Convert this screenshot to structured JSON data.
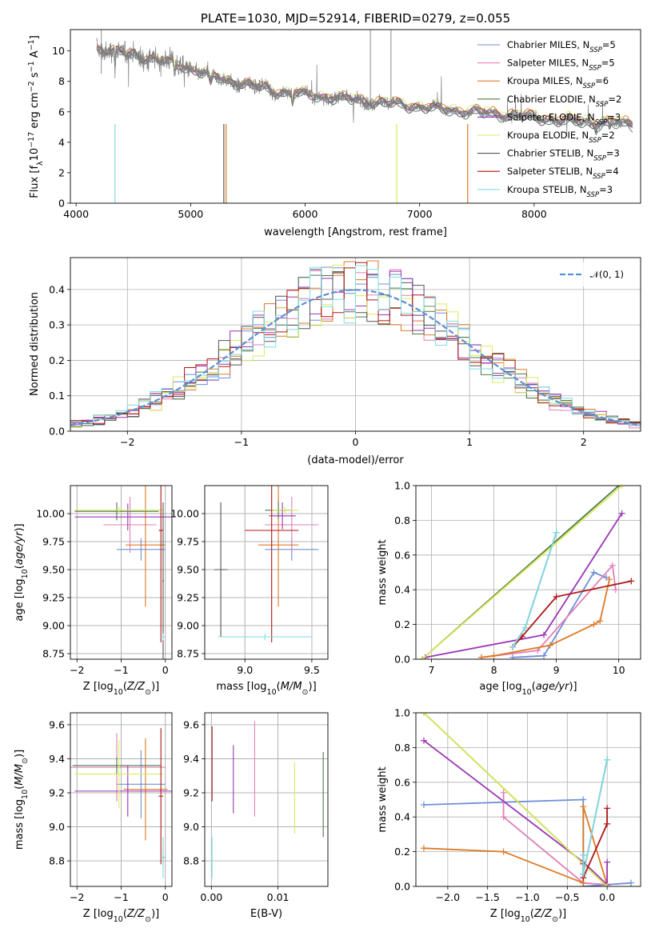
{
  "chart_data": [
    {
      "type": "line",
      "title": "PLATE=1030, MJD=52914, FIBERID=0279, z=0.055",
      "xlabel": "wavelength [Angstrom, rest frame]",
      "ylabel": "Flux [f_λ 10^-17 erg cm^-2 s^-1 A^-1]",
      "xlim": [
        3950,
        8930
      ],
      "ylim": [
        0,
        11.4
      ],
      "xticks": [
        "4000",
        "5000",
        "6000",
        "7000",
        "8000"
      ],
      "yticks": [
        "0",
        "2",
        "4",
        "6",
        "8",
        "10"
      ],
      "grid": false,
      "legend": "upper right",
      "data_series": {
        "name": "data",
        "color": "#808080",
        "x_range": [
          4180,
          8860
        ],
        "continuum_x": [
          4180,
          4600,
          4850,
          5300,
          5800,
          6300,
          6800,
          7300,
          7800,
          8300,
          8860
        ],
        "continuum_y": [
          10.2,
          9.6,
          9.2,
          8.1,
          7.3,
          6.9,
          6.5,
          6.1,
          5.8,
          5.4,
          5.2
        ]
      },
      "series": [
        {
          "name": "Chabrier MILES",
          "nssp": "5",
          "color": "#6f8fd9"
        },
        {
          "name": "Salpeter MILES",
          "nssp": "5",
          "color": "#e17fb7"
        },
        {
          "name": "Kroupa MILES",
          "nssp": "6",
          "color": "#dd7a25"
        },
        {
          "name": "Chabrier ELODIE",
          "nssp": "2",
          "color": "#4a7a4a"
        },
        {
          "name": "Salpeter ELODIE",
          "nssp": "3",
          "color": "#9a35b5"
        },
        {
          "name": "Kroupa ELODIE",
          "nssp": "2",
          "color": "#dcea5a"
        },
        {
          "name": "Chabrier STELIB",
          "nssp": "3",
          "color": "#555555"
        },
        {
          "name": "Salpeter STELIB",
          "nssp": "4",
          "color": "#b01515"
        },
        {
          "name": "Kroupa STELIB",
          "nssp": "3",
          "color": "#7fdde2"
        }
      ]
    },
    {
      "type": "step",
      "xlabel": "(data-model)/error",
      "ylabel": "Normed distribution",
      "xlim": [
        -2.5,
        2.5
      ],
      "ylim": [
        0,
        0.49
      ],
      "xticks": [
        "−2",
        "−1",
        "0",
        "1",
        "2"
      ],
      "yticks": [
        "0.0",
        "0.1",
        "0.2",
        "0.3",
        "0.4"
      ],
      "grid": true,
      "legend": "upper right",
      "reference_curve": {
        "name": "𝒩(0, 1)",
        "mean": 0,
        "std": 1,
        "color": "#5b8fd6"
      },
      "bin_width": 0.1
    },
    {
      "type": "errorbar",
      "xlabel": "Z [log10(Z/Z⊙)]",
      "ylabel": "age [log10(age/yr)]",
      "xlim": [
        -2.15,
        0.15
      ],
      "ylim": [
        8.7,
        10.25
      ],
      "xticks": [
        "−2",
        "−1",
        "0"
      ],
      "yticks": [
        "8.75",
        "9.00",
        "9.25",
        "9.50",
        "9.75",
        "10.00"
      ],
      "points": [
        {
          "series": "Chabrier MILES",
          "x": -0.55,
          "y": 9.68,
          "xerr": 0.55,
          "yerr": 0.1
        },
        {
          "series": "Salpeter MILES",
          "x": -0.8,
          "y": 9.9,
          "xerr": 0.6,
          "yerr": 0.25
        },
        {
          "series": "Kroupa MILES",
          "x": -0.45,
          "y": 9.72,
          "xerr": 0.45,
          "yerr": 0.55
        },
        {
          "series": "Chabrier ELODIE",
          "x": -1.1,
          "y": 10.02,
          "xerr": 0.95,
          "yerr": 0.08
        },
        {
          "series": "Salpeter ELODIE",
          "x": -0.85,
          "y": 9.97,
          "xerr": 1.2,
          "yerr": 0.12
        },
        {
          "series": "Kroupa ELODIE",
          "x": -1.05,
          "y": 10.03,
          "xerr": 1.0,
          "yerr": 0.03
        },
        {
          "series": "Chabrier STELIB",
          "x": -0.05,
          "y": 9.4,
          "xerr": 0.02,
          "yerr": 0.7
        },
        {
          "series": "Salpeter STELIB",
          "x": -0.1,
          "y": 9.85,
          "xerr": 0.05,
          "yerr": 1.0
        },
        {
          "series": "Kroupa STELIB",
          "x": -0.05,
          "y": 8.9,
          "xerr": 0.05,
          "yerr": 0.03
        }
      ]
    },
    {
      "type": "errorbar",
      "xlabel": "mass [log10(M/M⊙)]",
      "ylabel": "",
      "xlim": [
        8.7,
        9.62
      ],
      "ylim": [
        8.7,
        10.25
      ],
      "xticks": [
        "9.0",
        "9.5"
      ],
      "yticks": [
        "8.75",
        "9.00",
        "9.25",
        "9.50",
        "9.75",
        "10.00"
      ],
      "points": [
        {
          "series": "Chabrier MILES",
          "x": 9.35,
          "y": 9.68,
          "xerr": 0.2,
          "yerr": 0.1
        },
        {
          "series": "Salpeter MILES",
          "x": 9.35,
          "y": 9.9,
          "xerr": 0.2,
          "yerr": 0.25
        },
        {
          "series": "Kroupa MILES",
          "x": 9.25,
          "y": 9.72,
          "xerr": 0.15,
          "yerr": 0.55
        },
        {
          "series": "Chabrier ELODIE",
          "x": 9.25,
          "y": 10.03,
          "xerr": 0.1,
          "yerr": 0.08
        },
        {
          "series": "Salpeter ELODIE",
          "x": 9.28,
          "y": 9.98,
          "xerr": 0.1,
          "yerr": 0.12
        },
        {
          "series": "Kroupa ELODIE",
          "x": 9.3,
          "y": 10.03,
          "xerr": 0.1,
          "yerr": 0.03
        },
        {
          "series": "Chabrier STELIB",
          "x": 8.82,
          "y": 9.5,
          "xerr": 0.05,
          "yerr": 0.6
        },
        {
          "series": "Salpeter STELIB",
          "x": 9.2,
          "y": 9.85,
          "xerr": 0.2,
          "yerr": 1.0
        },
        {
          "series": "Kroupa STELIB",
          "x": 9.15,
          "y": 8.9,
          "xerr": 0.35,
          "yerr": 0.03
        }
      ]
    },
    {
      "type": "line",
      "xlabel": "age [log10(age/yr)]",
      "ylabel": "mass weight",
      "xlim": [
        6.75,
        10.35
      ],
      "ylim": [
        0,
        1.0
      ],
      "xticks": [
        "7",
        "8",
        "9",
        "10"
      ],
      "yticks": [
        "0.0",
        "0.2",
        "0.4",
        "0.6",
        "0.8",
        "1.0"
      ],
      "grid": true,
      "series": [
        {
          "name": "Chabrier MILES",
          "x": [
            8.3,
            8.8,
            9.6,
            9.8
          ],
          "y": [
            0.01,
            0.02,
            0.5,
            0.47
          ]
        },
        {
          "name": "Salpeter MILES",
          "x": [
            7.8,
            8.7,
            9.9,
            9.95
          ],
          "y": [
            0.01,
            0.05,
            0.54,
            0.4
          ]
        },
        {
          "name": "Kroupa MILES",
          "x": [
            7.8,
            8.0,
            8.9,
            9.6,
            9.7,
            9.85
          ],
          "y": [
            0.01,
            0.02,
            0.08,
            0.2,
            0.22,
            0.46
          ]
        },
        {
          "name": "Chabrier ELODIE",
          "x": [
            6.85,
            10.0
          ],
          "y": [
            0.0,
            1.0
          ]
        },
        {
          "name": "Salpeter ELODIE",
          "x": [
            6.9,
            8.8,
            10.05
          ],
          "y": [
            0.01,
            0.14,
            0.84
          ]
        },
        {
          "name": "Kroupa ELODIE",
          "x": [
            6.85,
            10.05
          ],
          "y": [
            0.0,
            1.0
          ]
        },
        {
          "name": "Chabrier STELIB",
          "x": [
            8.3,
            8.5,
            9.0
          ],
          "y": [
            0.07,
            0.18,
            0.73
          ]
        },
        {
          "name": "Salpeter STELIB",
          "x": [
            8.3,
            8.45,
            9.0,
            10.2
          ],
          "y": [
            0.07,
            0.13,
            0.36,
            0.45
          ]
        },
        {
          "name": "Kroupa STELIB",
          "x": [
            8.3,
            8.5,
            9.0
          ],
          "y": [
            0.07,
            0.18,
            0.73
          ]
        }
      ]
    },
    {
      "type": "errorbar",
      "xlabel": "Z [log10(Z/Z⊙)]",
      "ylabel": "mass [log10(M/M⊙)]",
      "xlim": [
        -2.15,
        0.15
      ],
      "ylim": [
        8.65,
        9.67
      ],
      "xticks": [
        "−2",
        "−1",
        "0"
      ],
      "yticks": [
        "8.8",
        "9.0",
        "9.2",
        "9.4",
        "9.6"
      ],
      "points": [
        {
          "series": "Chabrier MILES",
          "x": -0.55,
          "y": 9.25,
          "xerr": 0.55,
          "yerr": 0.2
        },
        {
          "series": "Salpeter MILES",
          "x": -1.1,
          "y": 9.35,
          "xerr": 1.1,
          "yerr": 0.2
        },
        {
          "series": "Kroupa MILES",
          "x": -0.45,
          "y": 9.22,
          "xerr": 0.5,
          "yerr": 0.3
        },
        {
          "series": "Chabrier ELODIE",
          "x": -1.1,
          "y": 9.36,
          "xerr": 1.0,
          "yerr": 0.05
        },
        {
          "series": "Salpeter ELODIE",
          "x": -0.85,
          "y": 9.21,
          "xerr": 1.2,
          "yerr": 0.15
        },
        {
          "series": "Kroupa ELODIE",
          "x": -1.05,
          "y": 9.31,
          "xerr": 1.0,
          "yerr": 0.2
        },
        {
          "series": "Chabrier STELIB",
          "x": -0.05,
          "y": 8.82,
          "xerr": 0.05,
          "yerr": 0.05
        },
        {
          "series": "Salpeter STELIB",
          "x": -0.1,
          "y": 9.18,
          "xerr": 0.05,
          "yerr": 0.4
        },
        {
          "series": "Kroupa STELIB",
          "x": -0.05,
          "y": 8.82,
          "xerr": 0.05,
          "yerr": 0.12
        }
      ]
    },
    {
      "type": "errorbar",
      "xlabel": "E(B-V)",
      "ylabel": "",
      "xlim": [
        -0.001,
        0.0175
      ],
      "ylim": [
        8.65,
        9.67
      ],
      "xticks": [
        "0.00",
        "0.01"
      ],
      "yticks": [
        "8.8",
        "9.0",
        "9.2",
        "9.4",
        "9.6"
      ],
      "points": [
        {
          "series": "Salpeter MILES",
          "x": 0.0065,
          "y": 9.34,
          "xerr": 0,
          "yerr": 0.28
        },
        {
          "series": "Salpeter ELODIE",
          "x": 0.0033,
          "y": 9.28,
          "xerr": 0,
          "yerr": 0.2
        },
        {
          "series": "Kroupa ELODIE",
          "x": 0.0125,
          "y": 9.17,
          "xerr": 0,
          "yerr": 0.21
        },
        {
          "series": "Chabrier ELODIE",
          "x": 0.0168,
          "y": 9.19,
          "xerr": 0,
          "yerr": 0.25
        },
        {
          "series": "Salpeter STELIB",
          "x": 0.0001,
          "y": 9.37,
          "xerr": 0,
          "yerr": 0.22
        },
        {
          "series": "Kroupa STELIB",
          "x": 0.0001,
          "y": 8.82,
          "xerr": 0,
          "yerr": 0.12
        }
      ]
    },
    {
      "type": "line",
      "xlabel": "Z [log10(Z/Z⊙)]",
      "ylabel": "mass weight",
      "xlim": [
        -2.4,
        0.42
      ],
      "ylim": [
        0,
        1.0
      ],
      "xticks": [
        "−2.0",
        "−1.5",
        "−1.0",
        "−0.5",
        "0.0"
      ],
      "yticks": [
        "0.0",
        "0.2",
        "0.4",
        "0.6",
        "0.8",
        "1.0"
      ],
      "grid": true,
      "series": [
        {
          "name": "Chabrier MILES",
          "x": [
            -2.3,
            -0.3,
            -0.3,
            0.3
          ],
          "y": [
            0.47,
            0.5,
            0.0,
            0.02
          ]
        },
        {
          "name": "Salpeter MILES",
          "x": [
            -1.3,
            -1.3,
            -0.3,
            0.0
          ],
          "y": [
            0.54,
            0.4,
            0.02,
            0.01
          ]
        },
        {
          "name": "Kroupa MILES",
          "x": [
            -2.3,
            -1.3,
            -0.3,
            -0.3,
            0.0
          ],
          "y": [
            0.22,
            0.2,
            0.02,
            0.46,
            0.01
          ]
        },
        {
          "name": "Chabrier ELODIE",
          "x": [
            -2.3,
            0.0
          ],
          "y": [
            1.0,
            0.0
          ]
        },
        {
          "name": "Salpeter ELODIE",
          "x": [
            -2.3,
            -0.3,
            0.0,
            0.0
          ],
          "y": [
            0.84,
            0.14,
            0.01,
            0.14
          ]
        },
        {
          "name": "Kroupa ELODIE",
          "x": [
            -2.3,
            0.0
          ],
          "y": [
            1.0,
            0.0
          ]
        },
        {
          "name": "Chabrier STELIB",
          "x": [
            -0.3,
            -0.3,
            0.0
          ],
          "y": [
            0.18,
            0.07,
            0.73
          ]
        },
        {
          "name": "Salpeter STELIB",
          "x": [
            -0.3,
            -0.3,
            0.0,
            0.0
          ],
          "y": [
            0.13,
            0.05,
            0.36,
            0.45
          ]
        },
        {
          "name": "Kroupa STELIB",
          "x": [
            -0.3,
            -0.3,
            0.0
          ],
          "y": [
            0.18,
            0.07,
            0.73
          ]
        }
      ]
    }
  ]
}
